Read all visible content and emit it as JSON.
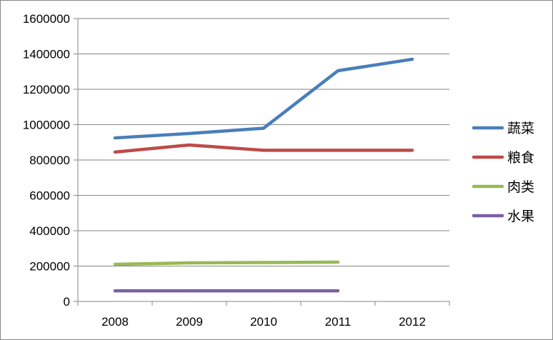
{
  "chart_data": {
    "type": "line",
    "categories": [
      "2008",
      "2009",
      "2010",
      "2011",
      "2012"
    ],
    "series": [
      {
        "name": "蔬菜",
        "color": "#4A7EBB",
        "values": [
          925000,
          950000,
          980000,
          1305000,
          1370000
        ]
      },
      {
        "name": "粮食",
        "color": "#BE4B48",
        "values": [
          845000,
          885000,
          855000,
          855000,
          855000
        ]
      },
      {
        "name": "肉类",
        "color": "#98B954",
        "values": [
          210000,
          218000,
          220000,
          222000,
          null
        ]
      },
      {
        "name": "水果",
        "color": "#7D60A0",
        "values": [
          60000,
          60000,
          60000,
          60000,
          null
        ]
      }
    ],
    "ylim": [
      0,
      1600000
    ],
    "yticks": [
      0,
      200000,
      400000,
      600000,
      800000,
      1000000,
      1200000,
      1400000,
      1600000
    ],
    "grid": true,
    "legend": "right"
  }
}
